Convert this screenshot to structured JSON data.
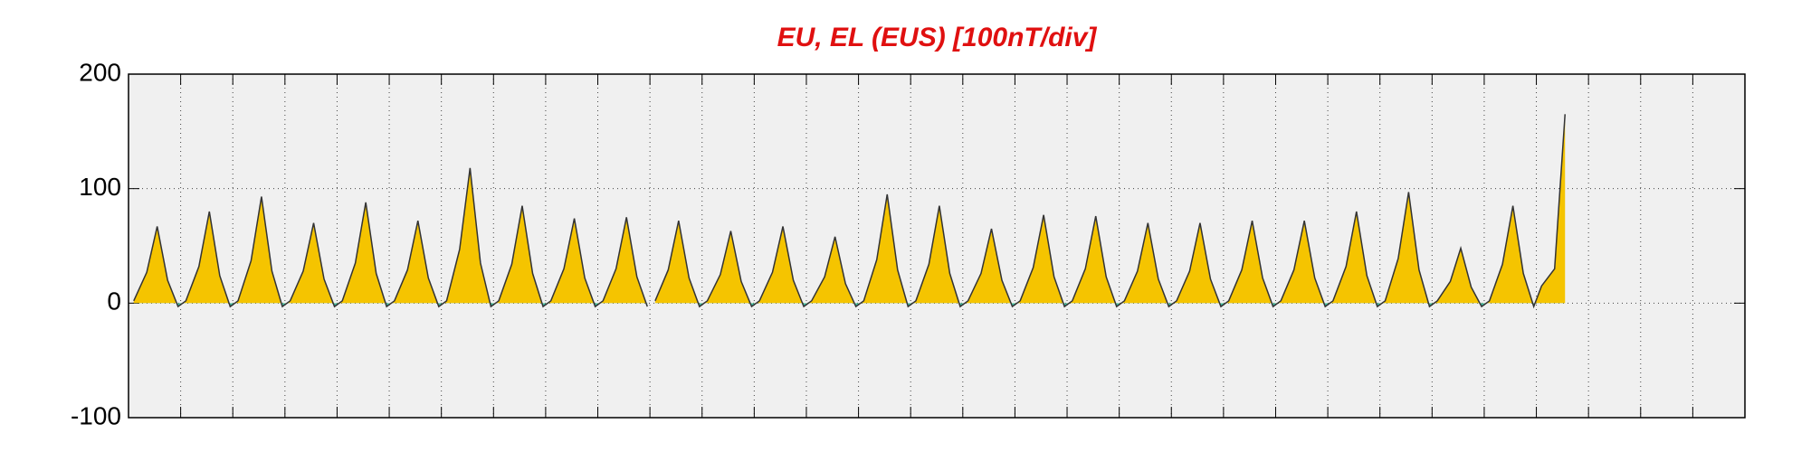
{
  "chart_data": {
    "type": "area-line",
    "title": "EU, EL (EUS)  [100nT/div]",
    "xlim": [
      0,
      31
    ],
    "xticks": [
      0,
      1,
      2,
      3,
      4,
      5,
      6,
      7,
      8,
      9,
      10,
      11,
      12,
      13,
      14,
      15,
      16,
      17,
      18,
      19,
      20,
      21,
      22,
      23,
      24,
      25,
      26,
      27,
      28,
      29,
      30,
      31
    ],
    "ylim": [
      -100,
      200
    ],
    "yticks": [
      200,
      100,
      0,
      -100
    ],
    "grid": true,
    "color": "#333333",
    "fill_color": "#f5c400",
    "negative_color": "#3fbfa8",
    "x": [
      0.1,
      0.35,
      0.55,
      0.75,
      0.95,
      1.1,
      1.35,
      1.55,
      1.75,
      1.95,
      2.1,
      2.35,
      2.55,
      2.75,
      2.95,
      3.1,
      3.35,
      3.55,
      3.75,
      3.95,
      4.1,
      4.35,
      4.55,
      4.75,
      4.95,
      5.1,
      5.35,
      5.55,
      5.75,
      5.95,
      6.1,
      6.35,
      6.55,
      6.75,
      6.95,
      7.1,
      7.35,
      7.55,
      7.75,
      7.95,
      8.1,
      8.35,
      8.55,
      8.75,
      8.95,
      9.1,
      9.35,
      9.55,
      9.75,
      9.95,
      9.98,
      10.1,
      10.35,
      10.55,
      10.75,
      10.95,
      11.1,
      11.35,
      11.55,
      11.75,
      11.95,
      12.1,
      12.35,
      12.55,
      12.75,
      12.95,
      13.1,
      13.35,
      13.55,
      13.75,
      13.95,
      14.1,
      14.35,
      14.55,
      14.75,
      14.95,
      15.1,
      15.35,
      15.55,
      15.75,
      15.95,
      16.1,
      16.35,
      16.55,
      16.75,
      16.95,
      17.1,
      17.35,
      17.55,
      17.75,
      17.95,
      18.1,
      18.35,
      18.55,
      18.75,
      18.95,
      19.1,
      19.35,
      19.55,
      19.75,
      19.95,
      20.1,
      20.35,
      20.55,
      20.75,
      20.95,
      21.1,
      21.35,
      21.55,
      21.75,
      21.95,
      22.1,
      22.35,
      22.55,
      22.75,
      22.95,
      23.1,
      23.35,
      23.55,
      23.75,
      23.95,
      24.1,
      24.35,
      24.55,
      24.75,
      24.95,
      25.1,
      25.35,
      25.55,
      25.75,
      25.95,
      26.1,
      26.35,
      26.55,
      26.75,
      26.95,
      27.1,
      27.35,
      27.55
    ],
    "values": [
      2,
      27,
      67,
      20,
      -3,
      2,
      32,
      80,
      24,
      -3,
      2,
      37,
      93,
      28,
      -3,
      2,
      28,
      70,
      21,
      -3,
      2,
      35,
      88,
      26,
      -3,
      2,
      29,
      72,
      22,
      -3,
      2,
      47,
      118,
      35,
      -3,
      2,
      34,
      85,
      26,
      -3,
      2,
      30,
      74,
      22,
      -3,
      2,
      30,
      75,
      23,
      -3,
      null,
      2,
      29,
      72,
      22,
      -3,
      2,
      25,
      63,
      19,
      -3,
      2,
      27,
      67,
      20,
      -3,
      2,
      23,
      58,
      17,
      -3,
      2,
      38,
      95,
      29,
      -3,
      2,
      34,
      85,
      26,
      -3,
      2,
      26,
      65,
      20,
      -3,
      2,
      31,
      77,
      23,
      -3,
      2,
      30,
      76,
      23,
      -3,
      2,
      28,
      70,
      21,
      -3,
      2,
      28,
      70,
      21,
      -3,
      2,
      29,
      72,
      22,
      -3,
      2,
      29,
      72,
      22,
      -3,
      2,
      32,
      80,
      24,
      -3,
      2,
      39,
      97,
      29,
      -3,
      2,
      19,
      48,
      14,
      -3,
      2,
      34,
      85,
      26,
      -3,
      15,
      30,
      165
    ]
  }
}
